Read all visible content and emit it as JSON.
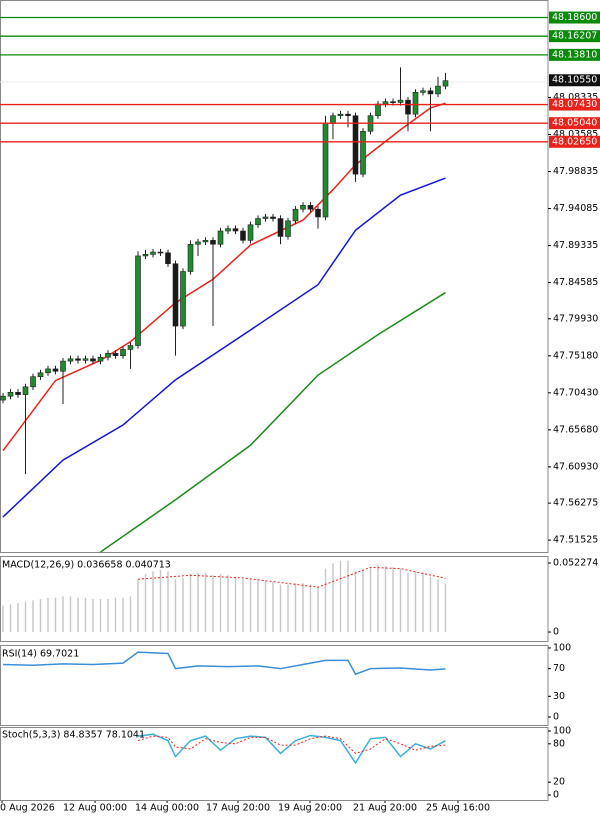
{
  "chart_data": [
    {
      "type": "candlestick",
      "bull_color": "#1f8a2e",
      "bear_color": "#1a1a1a",
      "open": [
        47.695,
        47.7,
        47.705,
        47.702,
        47.712,
        47.725,
        47.73,
        47.735,
        47.732,
        47.745,
        47.748,
        47.746,
        47.748,
        47.745,
        47.75,
        47.755,
        47.752,
        47.76,
        47.765,
        47.88,
        47.882,
        47.885,
        47.884,
        47.87,
        47.79,
        47.86,
        47.895,
        47.898,
        47.9,
        47.895,
        47.912,
        47.915,
        47.912,
        47.9,
        47.92,
        47.928,
        47.93,
        47.928,
        47.905,
        47.925,
        47.94,
        47.945,
        47.94,
        47.93,
        48.05,
        48.06,
        48.062,
        48.06,
        47.985,
        48.04,
        48.06,
        48.075,
        48.078,
        48.077,
        48.08,
        48.062,
        48.09,
        48.092,
        48.088,
        48.098
      ],
      "high": [
        47.704,
        47.709,
        47.709,
        47.716,
        47.729,
        47.734,
        47.739,
        47.739,
        47.749,
        47.752,
        47.752,
        47.752,
        47.752,
        47.754,
        47.759,
        47.759,
        47.764,
        47.769,
        47.886,
        47.888,
        47.889,
        47.889,
        47.888,
        47.874,
        47.864,
        47.9,
        47.902,
        47.904,
        47.904,
        47.916,
        47.919,
        47.919,
        47.916,
        47.924,
        47.932,
        47.934,
        47.934,
        47.932,
        47.929,
        47.944,
        47.949,
        47.949,
        47.944,
        48.06,
        48.064,
        48.066,
        48.066,
        48.064,
        48.044,
        48.064,
        48.079,
        48.082,
        48.082,
        48.122,
        48.084,
        48.094,
        48.096,
        48.096,
        48.11,
        48.115
      ],
      "low": [
        47.691,
        47.696,
        47.698,
        47.6,
        47.708,
        47.721,
        47.726,
        47.728,
        47.69,
        47.741,
        47.742,
        47.742,
        47.741,
        47.741,
        47.746,
        47.748,
        47.748,
        47.735,
        47.761,
        47.876,
        47.878,
        47.88,
        47.866,
        47.752,
        47.786,
        47.856,
        47.88,
        47.894,
        47.79,
        47.891,
        47.908,
        47.908,
        47.896,
        47.896,
        47.916,
        47.924,
        47.924,
        47.895,
        47.901,
        47.921,
        47.936,
        47.936,
        47.915,
        47.926,
        48.03,
        48.056,
        48.045,
        47.975,
        47.981,
        48.036,
        48.056,
        48.071,
        48.073,
        48.073,
        48.04,
        48.058,
        48.086,
        48.04,
        48.084,
        48.094
      ],
      "close": [
        47.7,
        47.705,
        47.702,
        47.712,
        47.725,
        47.73,
        47.735,
        47.732,
        47.745,
        47.748,
        47.746,
        47.748,
        47.745,
        47.75,
        47.755,
        47.752,
        47.76,
        47.765,
        47.88,
        47.882,
        47.885,
        47.884,
        47.87,
        47.79,
        47.86,
        47.895,
        47.898,
        47.9,
        47.895,
        47.912,
        47.915,
        47.912,
        47.9,
        47.92,
        47.928,
        47.93,
        47.928,
        47.905,
        47.925,
        47.94,
        47.945,
        47.94,
        47.93,
        48.05,
        48.06,
        48.062,
        48.06,
        47.985,
        48.04,
        48.06,
        48.075,
        48.078,
        48.077,
        48.08,
        48.062,
        48.09,
        48.092,
        48.088,
        48.098,
        48.105
      ],
      "series": [
        {
          "color": "#e8221b",
          "x": [
            0,
            7,
            13,
            17,
            23,
            28,
            33,
            40,
            44,
            47,
            53,
            57,
            59
          ],
          "values": [
            47.63,
            47.72,
            47.746,
            47.77,
            47.82,
            47.85,
            47.894,
            47.926,
            47.965,
            47.997,
            48.042,
            48.07,
            48.076
          ]
        },
        {
          "color": "#1414d4",
          "x": [
            0,
            8,
            16,
            23,
            33,
            42,
            47,
            53,
            59
          ],
          "values": [
            47.545,
            47.618,
            47.663,
            47.721,
            47.785,
            47.843,
            47.913,
            47.958,
            47.98
          ]
        },
        {
          "color": "#1a8a1a",
          "x": [
            13,
            23,
            33,
            42,
            50,
            59
          ],
          "values": [
            47.5,
            47.567,
            47.637,
            47.727,
            47.779,
            47.833
          ]
        }
      ],
      "levels": [
        {
          "value": 48.186,
          "label": "48.18600",
          "color": "#0a8a0a"
        },
        {
          "value": 48.16207,
          "label": "48.16207",
          "color": "#0a8a0a"
        },
        {
          "value": 48.1381,
          "label": "48.13810",
          "color": "#0a8a0a"
        },
        {
          "value": 48.0743,
          "label": "48.07430",
          "color": "#e8221b"
        },
        {
          "value": 48.0504,
          "label": "48.05040",
          "color": "#e8221b"
        },
        {
          "value": 48.0265,
          "label": "48.02650",
          "color": "#e8221b"
        }
      ],
      "current_price": {
        "value": 48.1055,
        "label": "48.10550"
      },
      "ylim": [
        47.5,
        48.2085
      ],
      "yticks": [
        48.08335,
        48.03585,
        47.98835,
        47.94085,
        47.89335,
        47.84585,
        {
          "value": 47.7993,
          "label": "47.79930"
        },
        {
          "value": 47.7518,
          "label": "47.75180"
        },
        {
          "value": 47.7043,
          "label": "47.70430"
        },
        {
          "value": 47.6568,
          "label": "47.65680"
        },
        {
          "value": 47.6093,
          "label": "47.60930"
        },
        47.56275,
        47.51525
      ],
      "x_labels": [
        "0 Aug 2026",
        "12 Aug 00:00",
        "14 Aug 00:00",
        "17 Aug 20:00",
        "19 Aug 20:00",
        "21 Aug 20:00",
        "25 Aug 16:00"
      ]
    },
    {
      "type": "macd",
      "title": "MACD(12,26,9) 0.036658 0.040713",
      "histogram": {
        "color": "#c8c8c8",
        "values": [
          0.02,
          0.021,
          0.022,
          0.023,
          0.024,
          0.025,
          0.026,
          0.026,
          0.027,
          0.027,
          0.026,
          0.026,
          0.025,
          0.025,
          0.025,
          0.026,
          0.026,
          0.027,
          0.04,
          0.044,
          0.046,
          0.047,
          0.046,
          0.04,
          0.041,
          0.044,
          0.045,
          0.045,
          0.043,
          0.044,
          0.043,
          0.042,
          0.04,
          0.04,
          0.04,
          0.039,
          0.038,
          0.036,
          0.036,
          0.037,
          0.037,
          0.036,
          0.034,
          0.048,
          0.052,
          0.054,
          0.054,
          0.046,
          0.047,
          0.049,
          0.051,
          0.05,
          0.049,
          0.048,
          0.045,
          0.046,
          0.045,
          0.042,
          0.04,
          0.036658
        ]
      },
      "signal": {
        "color": "#e8221b",
        "x": [
          18,
          25,
          32,
          42,
          49,
          53,
          59
        ],
        "values": [
          0.04,
          0.043,
          0.041,
          0.034,
          0.049,
          0.048,
          0.040713
        ]
      },
      "ylim": [
        -0.0068,
        0.0576
      ],
      "yticks": [
        0.052274,
        0
      ]
    },
    {
      "type": "rsi",
      "title": "RSI(14) 69.7021",
      "series": [
        {
          "color": "#3a8fd8",
          "x": [
            0,
            4,
            8,
            12,
            16,
            18,
            22,
            23,
            26,
            30,
            34,
            37,
            40,
            43,
            46,
            47,
            49,
            53,
            57,
            59
          ],
          "values": [
            76,
            75,
            77,
            76,
            78,
            94,
            92,
            70,
            74,
            73,
            74,
            70,
            76,
            82,
            82,
            62,
            70,
            71,
            68,
            69.7021
          ]
        }
      ],
      "ylim": [
        -11.6,
        104.3
      ],
      "yticks": [
        100,
        70,
        30,
        0
      ]
    },
    {
      "type": "stoch",
      "title": "Stoch(5,3,3) 84.8357 78.1041",
      "series": [
        {
          "color": "#3ab0d8",
          "dash": false,
          "x": [
            18,
            20,
            22,
            23,
            25,
            27,
            29,
            31,
            33,
            35,
            37,
            39,
            41,
            43,
            45,
            47,
            49,
            51,
            53,
            55,
            57,
            59
          ],
          "values": [
            92,
            95,
            85,
            60,
            85,
            92,
            70,
            88,
            92,
            90,
            65,
            85,
            93,
            90,
            85,
            50,
            88,
            90,
            60,
            80,
            72,
            84.8357
          ]
        },
        {
          "color": "#e8221b",
          "dash": true,
          "x": [
            18,
            20,
            22,
            23,
            25,
            27,
            29,
            31,
            33,
            35,
            37,
            39,
            41,
            43,
            45,
            47,
            49,
            51,
            53,
            55,
            57,
            59
          ],
          "values": [
            85,
            92,
            90,
            75,
            72,
            88,
            82,
            80,
            90,
            90,
            78,
            78,
            88,
            92,
            88,
            65,
            72,
            88,
            80,
            70,
            76,
            78.1041
          ]
        }
      ],
      "ylim": [
        -7.8,
        106.25
      ],
      "yticks": [
        100,
        80,
        20,
        0
      ]
    }
  ]
}
